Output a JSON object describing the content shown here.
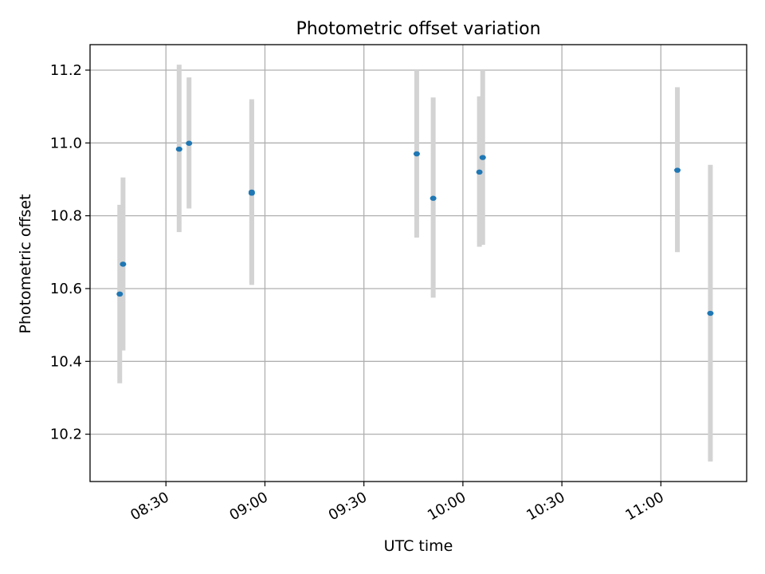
{
  "chart_data": {
    "type": "scatter",
    "title": "Photometric offset variation",
    "xlabel": "UTC time",
    "ylabel": "Photometric offset",
    "x_ticks": [
      "08:30",
      "09:00",
      "09:30",
      "10:00",
      "10:30",
      "11:00"
    ],
    "y_ticks": [
      "10.2",
      "10.4",
      "10.6",
      "10.8",
      "11.0",
      "11.2"
    ],
    "xlim": [
      "08:07",
      "11:26"
    ],
    "ylim": [
      10.07,
      11.27
    ],
    "grid": true,
    "series": [
      {
        "marker_color": "#1f77b4",
        "errorbar_color": "#d3d3d3",
        "points": [
          {
            "x": "08:16",
            "y": 10.585,
            "low": 10.34,
            "high": 10.83
          },
          {
            "x": "08:17",
            "y": 10.667,
            "low": 10.43,
            "high": 10.905
          },
          {
            "x": "08:34",
            "y": 10.983,
            "low": 10.755,
            "high": 11.215
          },
          {
            "x": "08:37",
            "y": 10.999,
            "low": 10.82,
            "high": 11.18
          },
          {
            "x": "08:56",
            "y": 10.862,
            "low": 10.61,
            "high": 11.115
          },
          {
            "x": "08:56",
            "y": 10.865,
            "low": 10.615,
            "high": 11.12
          },
          {
            "x": "09:46",
            "y": 10.97,
            "low": 10.74,
            "high": 11.2
          },
          {
            "x": "09:51",
            "y": 10.848,
            "low": 10.575,
            "high": 11.125
          },
          {
            "x": "10:05",
            "y": 10.92,
            "low": 10.715,
            "high": 11.128
          },
          {
            "x": "10:06",
            "y": 10.96,
            "low": 10.72,
            "high": 11.2
          },
          {
            "x": "11:05",
            "y": 10.925,
            "low": 10.7,
            "high": 11.153
          },
          {
            "x": "11:15",
            "y": 10.532,
            "low": 10.125,
            "high": 10.94
          }
        ]
      }
    ]
  }
}
